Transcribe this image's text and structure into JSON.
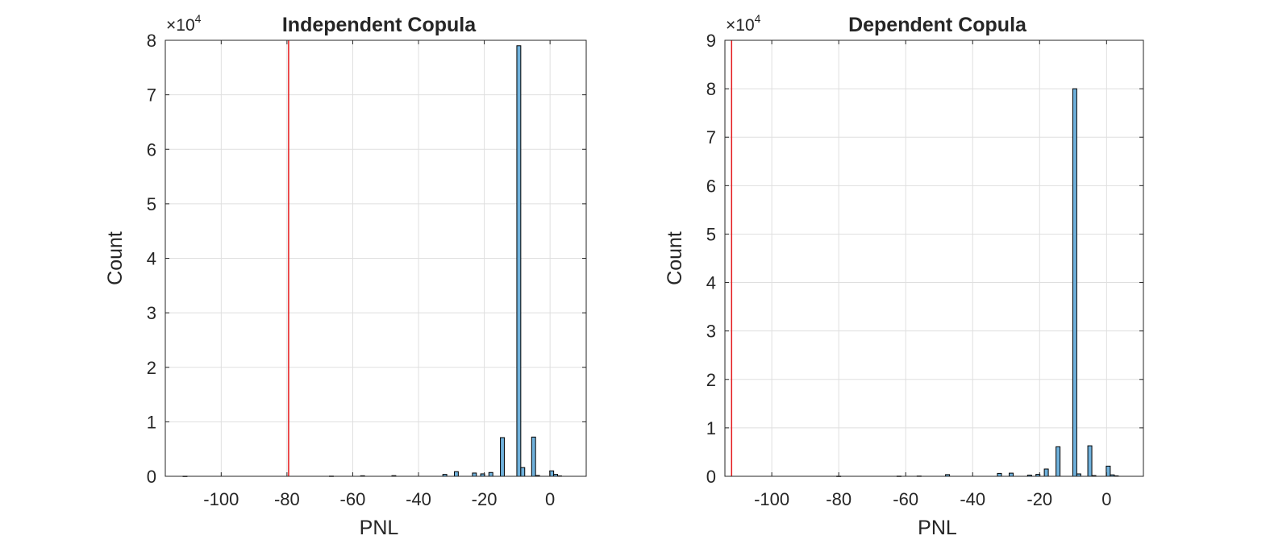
{
  "chart_data": [
    {
      "type": "histogram",
      "title": "Independent Copula",
      "xlabel": "PNL",
      "ylabel": "Count",
      "y_exponent_label": "×10",
      "y_exponent_power": "4",
      "xlim": [
        -117,
        11
      ],
      "ylim": [
        0,
        80000
      ],
      "xticks": [
        -100,
        -80,
        -60,
        -40,
        -20,
        0
      ],
      "xtick_labels": [
        "-100",
        "-80",
        "-60",
        "-40",
        "-20",
        "0"
      ],
      "yticks": [
        0,
        10000,
        20000,
        30000,
        40000,
        50000,
        60000,
        70000,
        80000
      ],
      "ytick_labels": [
        "0",
        "1",
        "2",
        "3",
        "4",
        "5",
        "6",
        "7",
        "8"
      ],
      "grid": true,
      "bin_width": 1.2,
      "bins": [
        {
          "x": -111.0,
          "count": 20
        },
        {
          "x": -66.5,
          "count": 40
        },
        {
          "x": -57.0,
          "count": 100
        },
        {
          "x": -47.5,
          "count": 120
        },
        {
          "x": -32.0,
          "count": 350
        },
        {
          "x": -28.5,
          "count": 850
        },
        {
          "x": -23.0,
          "count": 600
        },
        {
          "x": -20.5,
          "count": 450
        },
        {
          "x": -18.0,
          "count": 700
        },
        {
          "x": -14.5,
          "count": 7100
        },
        {
          "x": -9.5,
          "count": 79000
        },
        {
          "x": -8.3,
          "count": 1600
        },
        {
          "x": -5.0,
          "count": 7200
        },
        {
          "x": -3.8,
          "count": 150
        },
        {
          "x": 0.5,
          "count": 1000
        },
        {
          "x": 1.7,
          "count": 350
        },
        {
          "x": 2.9,
          "count": 80
        }
      ],
      "vline": {
        "x": -79.5,
        "color": "#e41a1c"
      },
      "bar_color": "#6fb1dc",
      "edge_color": "#000000"
    },
    {
      "type": "histogram",
      "title": "Dependent Copula",
      "xlabel": "PNL",
      "ylabel": "Count",
      "y_exponent_label": "×10",
      "y_exponent_power": "4",
      "xlim": [
        -114,
        11
      ],
      "ylim": [
        0,
        90000
      ],
      "xticks": [
        -100,
        -80,
        -60,
        -40,
        -20,
        0
      ],
      "xtick_labels": [
        "-100",
        "-80",
        "-60",
        "-40",
        "-20",
        "0"
      ],
      "yticks": [
        0,
        10000,
        20000,
        30000,
        40000,
        50000,
        60000,
        70000,
        80000,
        90000
      ],
      "ytick_labels": [
        "0",
        "1",
        "2",
        "3",
        "4",
        "5",
        "6",
        "7",
        "8",
        "9"
      ],
      "grid": true,
      "bin_width": 1.2,
      "bins": [
        {
          "x": -80.0,
          "count": 30
        },
        {
          "x": -62.0,
          "count": 40
        },
        {
          "x": -56.0,
          "count": 60
        },
        {
          "x": -47.5,
          "count": 350
        },
        {
          "x": -32.0,
          "count": 600
        },
        {
          "x": -28.5,
          "count": 650
        },
        {
          "x": -23.0,
          "count": 250
        },
        {
          "x": -20.5,
          "count": 400
        },
        {
          "x": -18.0,
          "count": 1500
        },
        {
          "x": -14.5,
          "count": 6100
        },
        {
          "x": -9.5,
          "count": 80000
        },
        {
          "x": -8.3,
          "count": 500
        },
        {
          "x": -5.0,
          "count": 6300
        },
        {
          "x": -3.8,
          "count": 150
        },
        {
          "x": 0.5,
          "count": 2100
        },
        {
          "x": 1.7,
          "count": 300
        },
        {
          "x": 2.9,
          "count": 100
        }
      ],
      "vline": {
        "x": -112.0,
        "color": "#e41a1c"
      },
      "bar_color": "#6fb1dc",
      "edge_color": "#000000"
    }
  ]
}
